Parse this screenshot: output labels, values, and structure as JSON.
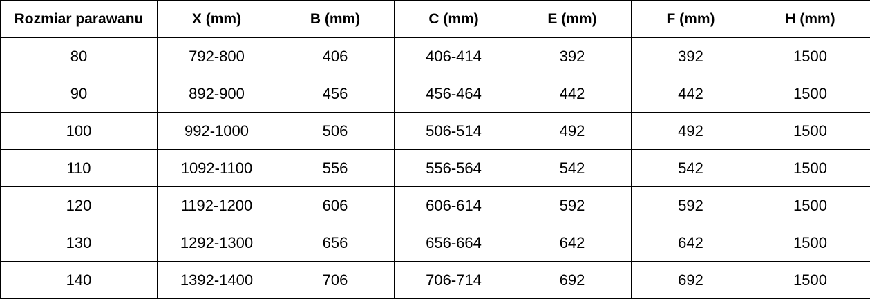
{
  "table": {
    "headers": [
      "Rozmiar parawanu",
      "X (mm)",
      "B (mm)",
      "C (mm)",
      "E (mm)",
      "F (mm)",
      "H (mm)"
    ],
    "rows": [
      [
        "80",
        "792-800",
        "406",
        "406-414",
        "392",
        "392",
        "1500"
      ],
      [
        "90",
        "892-900",
        "456",
        "456-464",
        "442",
        "442",
        "1500"
      ],
      [
        "100",
        "992-1000",
        "506",
        "506-514",
        "492",
        "492",
        "1500"
      ],
      [
        "110",
        "1092-1100",
        "556",
        "556-564",
        "542",
        "542",
        "1500"
      ],
      [
        "120",
        "1192-1200",
        "606",
        "606-614",
        "592",
        "592",
        "1500"
      ],
      [
        "130",
        "1292-1300",
        "656",
        "656-664",
        "642",
        "642",
        "1500"
      ],
      [
        "140",
        "1392-1400",
        "706",
        "706-714",
        "692",
        "692",
        "1500"
      ]
    ]
  }
}
